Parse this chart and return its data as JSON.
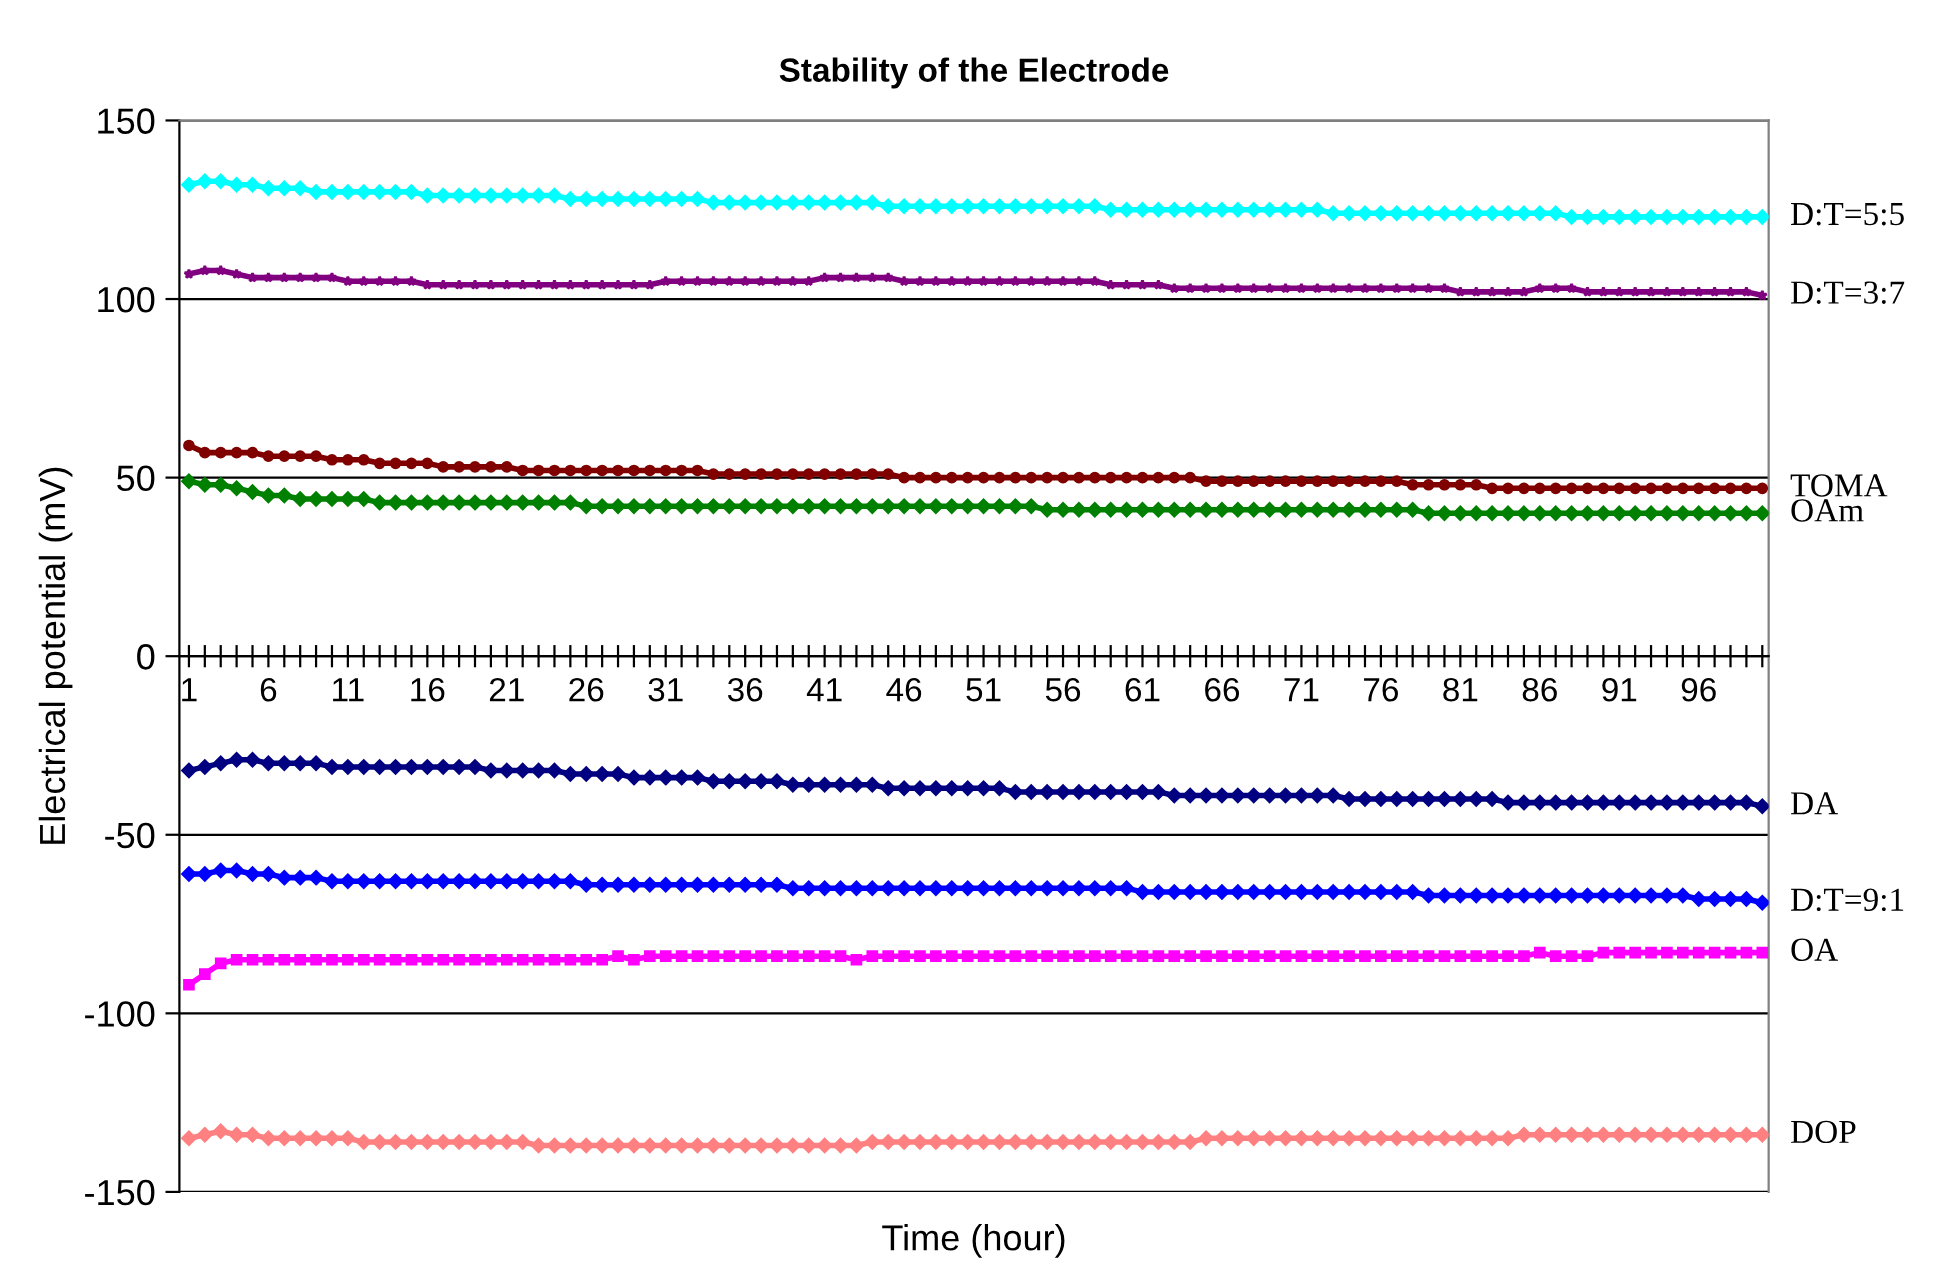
{
  "chart_data": {
    "type": "line",
    "title": "Stability of the Electrode",
    "xlabel": "Time (hour)",
    "ylabel": "Electrical potential (mV)",
    "categories": [
      "1",
      null,
      null,
      null,
      null,
      "6",
      null,
      null,
      null,
      null,
      "11",
      null,
      null,
      null,
      null,
      "16",
      null,
      null,
      null,
      null,
      "21",
      null,
      null,
      null,
      null,
      "26",
      null,
      null,
      null,
      null,
      "31",
      null,
      null,
      null,
      null,
      "36",
      null,
      null,
      null,
      null,
      "41",
      null,
      null,
      null,
      null,
      "46",
      null,
      null,
      null,
      null,
      "51",
      null,
      null,
      null,
      null,
      "56",
      null,
      null,
      null,
      null,
      "61",
      null,
      null,
      null,
      null,
      "66",
      null,
      null,
      null,
      null,
      "71",
      null,
      null,
      null,
      null,
      "76",
      null,
      null,
      null,
      null,
      "81",
      null,
      null,
      null,
      null,
      "86",
      null,
      null,
      null,
      null,
      "91",
      null,
      null,
      null,
      null,
      "96",
      null,
      null,
      null,
      null
    ],
    "ylim": [
      -150,
      150
    ],
    "yticks": [
      -150,
      -100,
      -50,
      0,
      50,
      100,
      150
    ],
    "grid": "y",
    "legend": "right",
    "series": [
      {
        "name": "D:T=5:5",
        "color": "#00ffff",
        "marker": "diamond",
        "values": [
          132,
          133,
          133,
          132,
          132,
          131,
          131,
          131,
          130,
          130,
          130,
          130,
          130,
          130,
          130,
          129,
          129,
          129,
          129,
          129,
          129,
          129,
          129,
          129,
          128,
          128,
          128,
          128,
          128,
          128,
          128,
          128,
          128,
          127,
          127,
          127,
          127,
          127,
          127,
          127,
          127,
          127,
          127,
          127,
          126,
          126,
          126,
          126,
          126,
          126,
          126,
          126,
          126,
          126,
          126,
          126,
          126,
          126,
          125,
          125,
          125,
          125,
          125,
          125,
          125,
          125,
          125,
          125,
          125,
          125,
          125,
          125,
          124,
          124,
          124,
          124,
          124,
          124,
          124,
          124,
          124,
          124,
          124,
          124,
          124,
          124,
          124,
          123,
          123,
          123,
          123,
          123,
          123,
          123,
          123,
          123,
          123,
          123,
          123,
          123
        ]
      },
      {
        "name": "D:T=3:7",
        "color": "#800080",
        "marker": "star",
        "values": [
          107,
          108,
          108,
          107,
          106,
          106,
          106,
          106,
          106,
          106,
          105,
          105,
          105,
          105,
          105,
          104,
          104,
          104,
          104,
          104,
          104,
          104,
          104,
          104,
          104,
          104,
          104,
          104,
          104,
          104,
          105,
          105,
          105,
          105,
          105,
          105,
          105,
          105,
          105,
          105,
          106,
          106,
          106,
          106,
          106,
          105,
          105,
          105,
          105,
          105,
          105,
          105,
          105,
          105,
          105,
          105,
          105,
          105,
          104,
          104,
          104,
          104,
          103,
          103,
          103,
          103,
          103,
          103,
          103,
          103,
          103,
          103,
          103,
          103,
          103,
          103,
          103,
          103,
          103,
          103,
          102,
          102,
          102,
          102,
          102,
          103,
          103,
          103,
          102,
          102,
          102,
          102,
          102,
          102,
          102,
          102,
          102,
          102,
          102,
          101
        ]
      },
      {
        "name": "TOMA",
        "color": "#800000",
        "marker": "circle",
        "values": [
          59,
          57,
          57,
          57,
          57,
          56,
          56,
          56,
          56,
          55,
          55,
          55,
          54,
          54,
          54,
          54,
          53,
          53,
          53,
          53,
          53,
          52,
          52,
          52,
          52,
          52,
          52,
          52,
          52,
          52,
          52,
          52,
          52,
          51,
          51,
          51,
          51,
          51,
          51,
          51,
          51,
          51,
          51,
          51,
          51,
          50,
          50,
          50,
          50,
          50,
          50,
          50,
          50,
          50,
          50,
          50,
          50,
          50,
          50,
          50,
          50,
          50,
          50,
          50,
          49,
          49,
          49,
          49,
          49,
          49,
          49,
          49,
          49,
          49,
          49,
          49,
          49,
          48,
          48,
          48,
          48,
          48,
          47,
          47,
          47,
          47,
          47,
          47,
          47,
          47,
          47,
          47,
          47,
          47,
          47,
          47,
          47,
          47,
          47,
          47
        ]
      },
      {
        "name": "OAm",
        "color": "#008000",
        "marker": "diamond",
        "values": [
          49,
          48,
          48,
          47,
          46,
          45,
          45,
          44,
          44,
          44,
          44,
          44,
          43,
          43,
          43,
          43,
          43,
          43,
          43,
          43,
          43,
          43,
          43,
          43,
          43,
          42,
          42,
          42,
          42,
          42,
          42,
          42,
          42,
          42,
          42,
          42,
          42,
          42,
          42,
          42,
          42,
          42,
          42,
          42,
          42,
          42,
          42,
          42,
          42,
          42,
          42,
          42,
          42,
          42,
          41,
          41,
          41,
          41,
          41,
          41,
          41,
          41,
          41,
          41,
          41,
          41,
          41,
          41,
          41,
          41,
          41,
          41,
          41,
          41,
          41,
          41,
          41,
          41,
          40,
          40,
          40,
          40,
          40,
          40,
          40,
          40,
          40,
          40,
          40,
          40,
          40,
          40,
          40,
          40,
          40,
          40,
          40,
          40,
          40,
          40
        ]
      },
      {
        "name": "DA",
        "color": "#000080",
        "marker": "diamond",
        "values": [
          -32,
          -31,
          -30,
          -29,
          -29,
          -30,
          -30,
          -30,
          -30,
          -31,
          -31,
          -31,
          -31,
          -31,
          -31,
          -31,
          -31,
          -31,
          -31,
          -32,
          -32,
          -32,
          -32,
          -32,
          -33,
          -33,
          -33,
          -33,
          -34,
          -34,
          -34,
          -34,
          -34,
          -35,
          -35,
          -35,
          -35,
          -35,
          -36,
          -36,
          -36,
          -36,
          -36,
          -36,
          -37,
          -37,
          -37,
          -37,
          -37,
          -37,
          -37,
          -37,
          -38,
          -38,
          -38,
          -38,
          -38,
          -38,
          -38,
          -38,
          -38,
          -38,
          -39,
          -39,
          -39,
          -39,
          -39,
          -39,
          -39,
          -39,
          -39,
          -39,
          -39,
          -40,
          -40,
          -40,
          -40,
          -40,
          -40,
          -40,
          -40,
          -40,
          -40,
          -41,
          -41,
          -41,
          -41,
          -41,
          -41,
          -41,
          -41,
          -41,
          -41,
          -41,
          -41,
          -41,
          -41,
          -41,
          -41,
          -42
        ]
      },
      {
        "name": "D:T=9:1",
        "color": "#0000ff",
        "marker": "diamond",
        "values": [
          -61,
          -61,
          -60,
          -60,
          -61,
          -61,
          -62,
          -62,
          -62,
          -63,
          -63,
          -63,
          -63,
          -63,
          -63,
          -63,
          -63,
          -63,
          -63,
          -63,
          -63,
          -63,
          -63,
          -63,
          -63,
          -64,
          -64,
          -64,
          -64,
          -64,
          -64,
          -64,
          -64,
          -64,
          -64,
          -64,
          -64,
          -64,
          -65,
          -65,
          -65,
          -65,
          -65,
          -65,
          -65,
          -65,
          -65,
          -65,
          -65,
          -65,
          -65,
          -65,
          -65,
          -65,
          -65,
          -65,
          -65,
          -65,
          -65,
          -65,
          -66,
          -66,
          -66,
          -66,
          -66,
          -66,
          -66,
          -66,
          -66,
          -66,
          -66,
          -66,
          -66,
          -66,
          -66,
          -66,
          -66,
          -66,
          -67,
          -67,
          -67,
          -67,
          -67,
          -67,
          -67,
          -67,
          -67,
          -67,
          -67,
          -67,
          -67,
          -67,
          -67,
          -67,
          -67,
          -68,
          -68,
          -68,
          -68,
          -69
        ]
      },
      {
        "name": "OA",
        "color": "#ff00ff",
        "marker": "square",
        "values": [
          -92,
          -89,
          -86,
          -85,
          -85,
          -85,
          -85,
          -85,
          -85,
          -85,
          -85,
          -85,
          -85,
          -85,
          -85,
          -85,
          -85,
          -85,
          -85,
          -85,
          -85,
          -85,
          -85,
          -85,
          -85,
          -85,
          -85,
          -84,
          -85,
          -84,
          -84,
          -84,
          -84,
          -84,
          -84,
          -84,
          -84,
          -84,
          -84,
          -84,
          -84,
          -84,
          -85,
          -84,
          -84,
          -84,
          -84,
          -84,
          -84,
          -84,
          -84,
          -84,
          -84,
          -84,
          -84,
          -84,
          -84,
          -84,
          -84,
          -84,
          -84,
          -84,
          -84,
          -84,
          -84,
          -84,
          -84,
          -84,
          -84,
          -84,
          -84,
          -84,
          -84,
          -84,
          -84,
          -84,
          -84,
          -84,
          -84,
          -84,
          -84,
          -84,
          -84,
          -84,
          -84,
          -83,
          -84,
          -84,
          -84,
          -83,
          -83,
          -83,
          -83,
          -83,
          -83,
          -83,
          -83,
          -83,
          -83,
          -83
        ]
      },
      {
        "name": "DOP",
        "color": "#ff8080",
        "marker": "diamond",
        "values": [
          -135,
          -134,
          -133,
          -134,
          -134,
          -135,
          -135,
          -135,
          -135,
          -135,
          -135,
          -136,
          -136,
          -136,
          -136,
          -136,
          -136,
          -136,
          -136,
          -136,
          -136,
          -136,
          -137,
          -137,
          -137,
          -137,
          -137,
          -137,
          -137,
          -137,
          -137,
          -137,
          -137,
          -137,
          -137,
          -137,
          -137,
          -137,
          -137,
          -137,
          -137,
          -137,
          -137,
          -136,
          -136,
          -136,
          -136,
          -136,
          -136,
          -136,
          -136,
          -136,
          -136,
          -136,
          -136,
          -136,
          -136,
          -136,
          -136,
          -136,
          -136,
          -136,
          -136,
          -136,
          -135,
          -135,
          -135,
          -135,
          -135,
          -135,
          -135,
          -135,
          -135,
          -135,
          -135,
          -135,
          -135,
          -135,
          -135,
          -135,
          -135,
          -135,
          -135,
          -135,
          -134,
          -134,
          -134,
          -134,
          -134,
          -134,
          -134,
          -134,
          -134,
          -134,
          -134,
          -134,
          -134,
          -134,
          -134,
          -134
        ]
      }
    ]
  }
}
